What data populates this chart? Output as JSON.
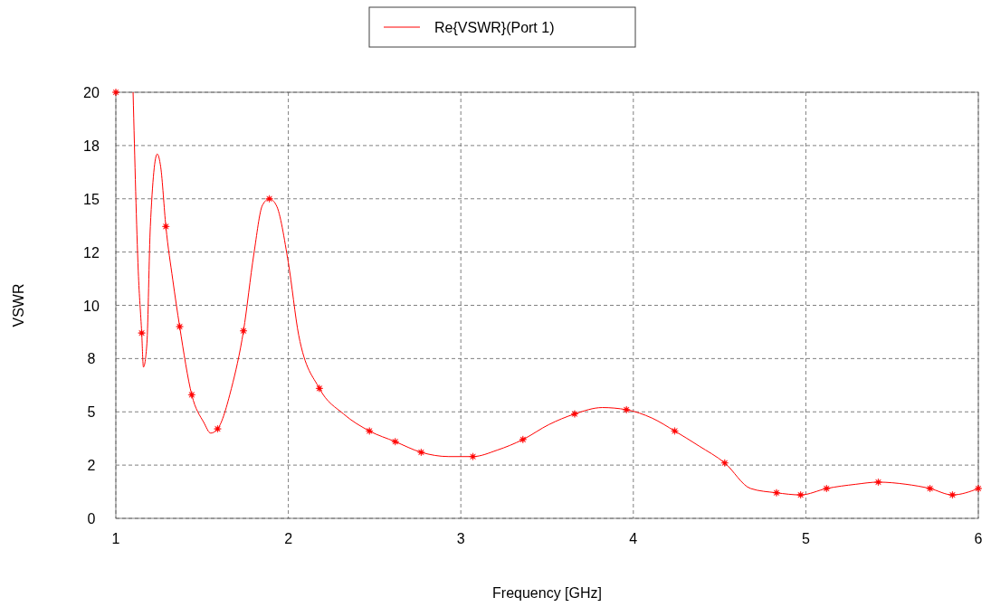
{
  "chart_data": {
    "type": "line",
    "xlabel": "Frequency [GHz]",
    "ylabel": "VSWR",
    "xlim": [
      1,
      6
    ],
    "ylim": [
      0,
      20
    ],
    "xticks": [
      1,
      2,
      3,
      4,
      5,
      6
    ],
    "yticks": [
      0,
      {
        "value": 2.5,
        "label": "2"
      },
      5,
      {
        "value": 7.5,
        "label": "8"
      },
      10,
      {
        "value": 12.5,
        "label": "12"
      },
      15,
      {
        "value": 17.5,
        "label": "18"
      },
      20
    ],
    "grid": true,
    "legend": "top",
    "line_style": "solid",
    "series": [
      {
        "name": "Re{VSWR}(Port 1)",
        "color": "#ff0000",
        "marker": "none",
        "x": [
          1.1,
          1.13,
          1.15,
          1.16,
          1.18,
          1.2,
          1.24,
          1.26,
          1.29,
          1.33,
          1.37,
          1.44,
          1.51,
          1.55,
          1.59,
          1.67,
          1.74,
          1.8,
          1.85,
          1.89,
          1.93,
          2.0,
          2.06,
          2.18,
          2.32,
          2.47,
          2.62,
          2.77,
          2.93,
          3.07,
          3.21,
          3.36,
          3.51,
          3.66,
          3.82,
          3.96,
          4.11,
          4.24,
          4.38,
          4.53,
          4.68,
          4.83,
          4.97,
          5.12,
          5.29,
          5.42,
          5.58,
          5.72,
          5.85,
          6.0
        ],
        "values": [
          20,
          11.6,
          8.7,
          7.1,
          8.2,
          13.7,
          17.1,
          16.5,
          13.7,
          11.2,
          9.0,
          5.8,
          4.5,
          4.0,
          4.2,
          6.1,
          8.8,
          12.4,
          14.7,
          15.0,
          14.7,
          12.0,
          8.6,
          6.1,
          4.9,
          4.1,
          3.6,
          3.1,
          2.9,
          2.9,
          3.2,
          3.7,
          4.4,
          4.9,
          5.2,
          5.1,
          4.7,
          4.1,
          3.4,
          2.6,
          1.4,
          1.2,
          1.1,
          1.4,
          1.6,
          1.7,
          1.6,
          1.4,
          1.1,
          1.4
        ]
      },
      {
        "type": "scatter",
        "color": "#ff0000",
        "marker": "star",
        "x": [
          1,
          1.15,
          1.29,
          1.37,
          1.44,
          1.59,
          1.74,
          1.89,
          2.18,
          2.47,
          2.62,
          2.77,
          3.07,
          3.36,
          3.66,
          3.96,
          4.24,
          4.53,
          4.83,
          4.97,
          5.12,
          5.42,
          5.72,
          5.85,
          6.0
        ],
        "values": [
          20,
          8.7,
          13.7,
          9.0,
          5.8,
          4.2,
          8.8,
          15.0,
          6.1,
          4.1,
          3.6,
          3.1,
          2.9,
          3.7,
          4.9,
          5.1,
          4.1,
          2.6,
          1.2,
          1.1,
          1.4,
          1.7,
          1.4,
          1.1,
          1.4
        ]
      }
    ]
  }
}
